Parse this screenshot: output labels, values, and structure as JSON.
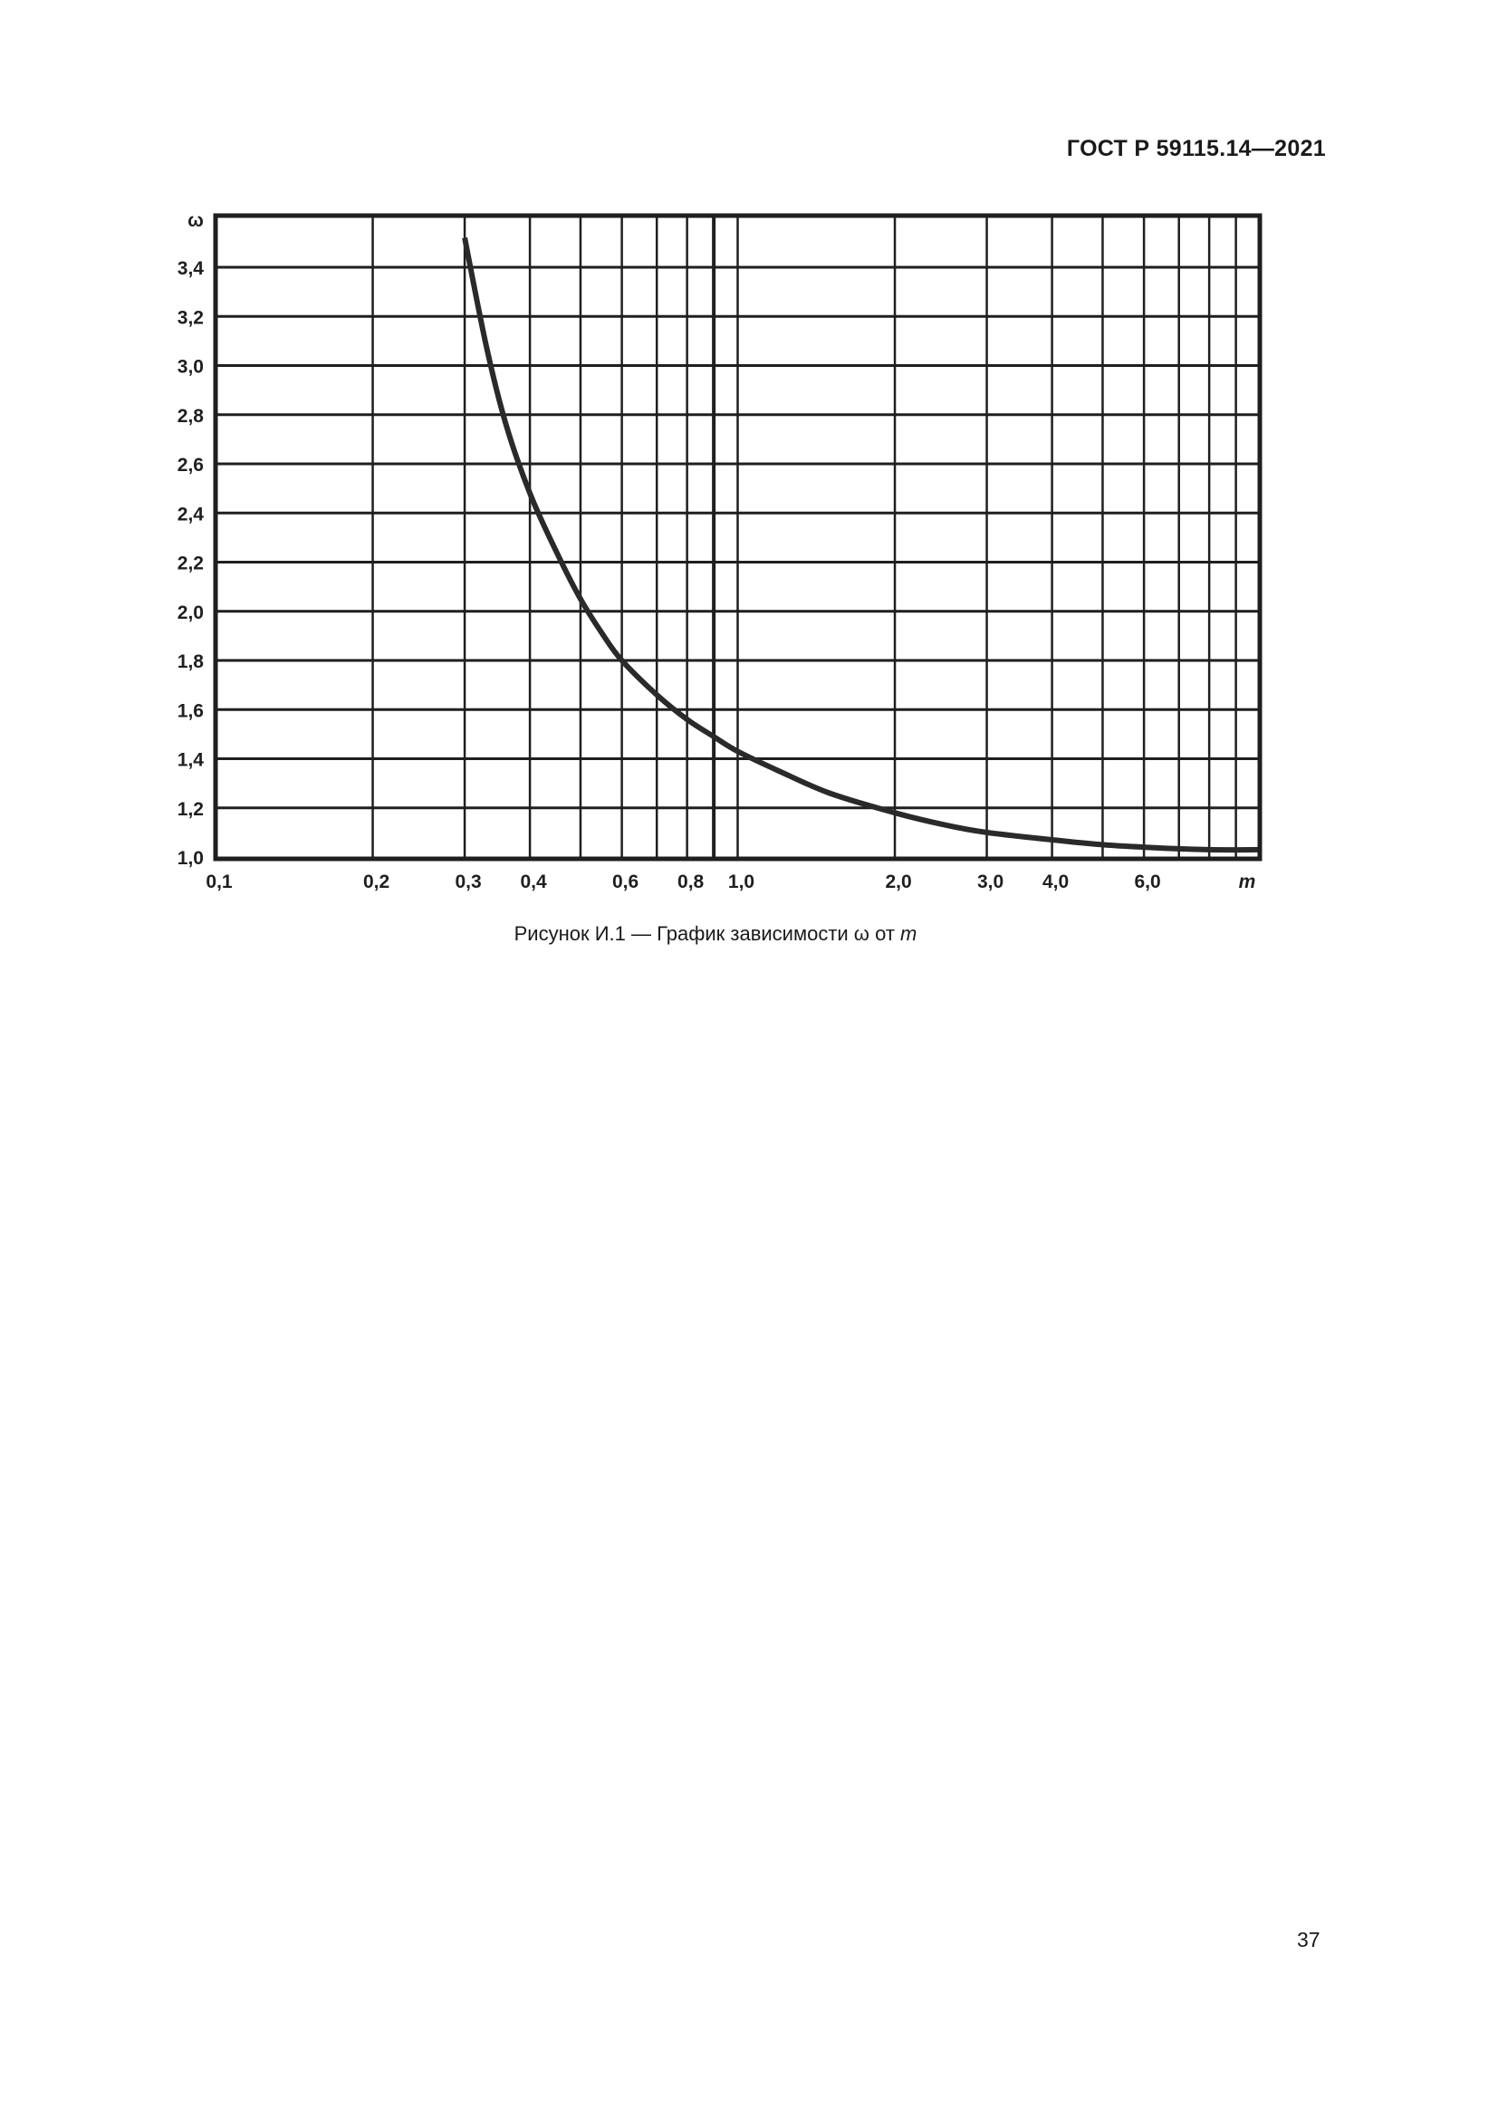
{
  "document": {
    "header_code": "ГОСТ Р 59115.14—2021",
    "page_number": "37",
    "caption": {
      "prefix": "Рисунок И.1 — График зависимости ω от ",
      "variable": "m"
    }
  },
  "colors": {
    "ink": "#1f1f1f",
    "background": "#ffffff"
  },
  "chart_data": {
    "type": "line",
    "title": "Рисунок И.1 — График зависимости ω от m",
    "xlabel": "m",
    "ylabel": "ω",
    "xscale": "log",
    "xlim": [
      0.1,
      10.0
    ],
    "ylim": [
      1.0,
      3.6
    ],
    "grid": true,
    "legend": "none",
    "x_tick_labels": [
      "0,1",
      "0,2",
      "0,3",
      "0,4",
      "0,6",
      "0,8",
      "1,0",
      "2,0",
      "3,0",
      "4,0",
      "6,0"
    ],
    "x_tick_values": [
      0.1,
      0.2,
      0.3,
      0.4,
      0.6,
      0.8,
      1.0,
      2.0,
      3.0,
      4.0,
      6.0
    ],
    "x_gridlines": [
      0.2,
      0.3,
      0.4,
      0.5,
      0.6,
      0.7,
      0.8,
      0.9,
      1.0,
      2.0,
      3.0,
      4.0,
      5.0,
      6.0,
      7.0,
      8.0,
      9.0
    ],
    "y_tick_labels": [
      "1,0",
      "1,2",
      "1,4",
      "1,6",
      "1,8",
      "2,0",
      "2,2",
      "2,4",
      "2,6",
      "2,8",
      "3,0",
      "3,2",
      "3,4"
    ],
    "y_tick_values": [
      1.0,
      1.2,
      1.4,
      1.6,
      1.8,
      2.0,
      2.2,
      2.4,
      2.6,
      2.8,
      3.0,
      3.2,
      3.4
    ],
    "series": [
      {
        "name": "ω(m)",
        "x": [
          0.3,
          0.33,
          0.36,
          0.4,
          0.45,
          0.5,
          0.55,
          0.6,
          0.7,
          0.8,
          0.9,
          1.0,
          1.2,
          1.5,
          2.0,
          2.5,
          3.0,
          4.0,
          5.0,
          6.0,
          8.0,
          10.0
        ],
        "values": [
          3.52,
          3.08,
          2.76,
          2.48,
          2.24,
          2.05,
          1.91,
          1.8,
          1.66,
          1.56,
          1.49,
          1.43,
          1.35,
          1.26,
          1.18,
          1.13,
          1.1,
          1.07,
          1.05,
          1.04,
          1.03,
          1.03
        ]
      }
    ]
  }
}
